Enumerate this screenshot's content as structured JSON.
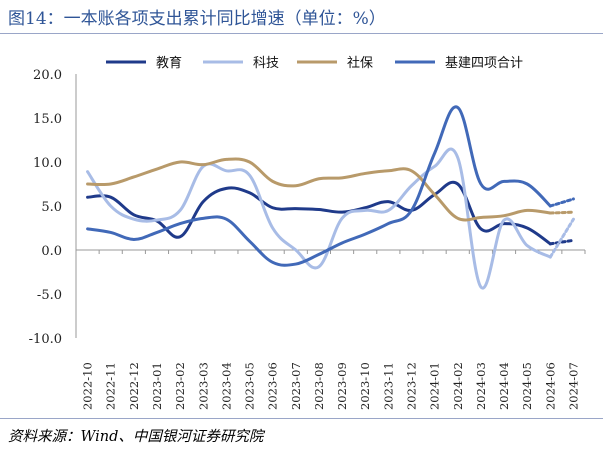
{
  "title": "图14：一本账各项支出累计同比增速（单位：%）",
  "source": "资料来源：Wind、中国银河证券研究院",
  "chart_data": {
    "type": "line",
    "title": "图14：一本账各项支出累计同比增速（单位：%）",
    "xlabel": "",
    "ylabel": "",
    "ylim": [
      -10,
      20
    ],
    "yticks": [
      "20.0",
      "15.0",
      "10.0",
      "5.0",
      "0.0",
      "-5.0",
      "-10.0"
    ],
    "ytick_values": [
      20,
      15,
      10,
      5,
      0,
      -5,
      -10
    ],
    "grid": false,
    "legend_position": "top",
    "categories": [
      "2022-10",
      "2022-11",
      "2022-12",
      "2023-01",
      "2023-02",
      "2023-03",
      "2023-04",
      "2023-05",
      "2023-06",
      "2023-07",
      "2023-08",
      "2023-09",
      "2023-10",
      "2023-11",
      "2023-12",
      "2024-01",
      "2024-02",
      "2024-03",
      "2024-04",
      "2024-05",
      "2024-06",
      "2024-07"
    ],
    "series": [
      {
        "name": "教育",
        "color": "#1f3a8a",
        "width": 3,
        "values": [
          6.0,
          6.0,
          4.0,
          3.3,
          1.5,
          5.5,
          7.0,
          6.5,
          4.8,
          4.7,
          4.6,
          4.3,
          4.8,
          5.5,
          4.5,
          6.3,
          7.5,
          2.4,
          3.0,
          2.5,
          0.7,
          1.1
        ]
      },
      {
        "name": "科技",
        "color": "#a8bce6",
        "width": 3,
        "values": [
          8.9,
          5.0,
          3.5,
          3.4,
          4.5,
          9.5,
          9.0,
          8.5,
          2.5,
          0.0,
          -1.9,
          3.6,
          4.5,
          4.5,
          7.3,
          9.5,
          10.5,
          -4.2,
          3.4,
          0.5,
          -0.8,
          3.5
        ]
      },
      {
        "name": "社保",
        "color": "#b89a6a",
        "width": 3,
        "values": [
          7.5,
          7.5,
          8.3,
          9.2,
          10.0,
          9.7,
          10.3,
          10.0,
          7.8,
          7.3,
          8.1,
          8.2,
          8.7,
          9.0,
          9.0,
          6.3,
          3.6,
          3.7,
          3.9,
          4.5,
          4.2,
          4.3
        ]
      },
      {
        "name": "基建四项合计",
        "color": "#4169b8",
        "width": 3,
        "values": [
          2.4,
          2.0,
          1.2,
          2.0,
          3.0,
          3.6,
          3.5,
          1.0,
          -1.4,
          -1.6,
          -0.5,
          0.8,
          1.8,
          3.0,
          4.5,
          11.0,
          16.2,
          7.5,
          7.8,
          7.5,
          5.0,
          5.8
        ]
      }
    ]
  }
}
